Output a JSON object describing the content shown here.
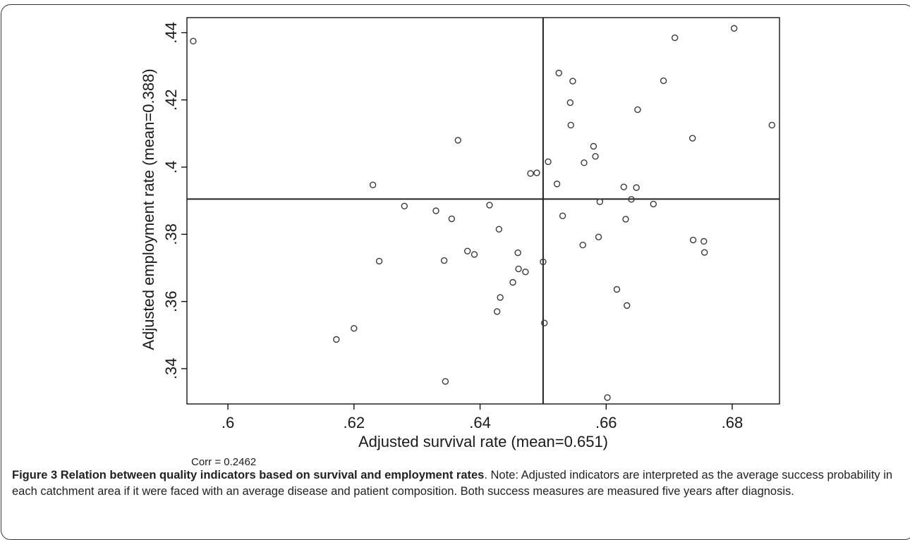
{
  "chart_data": {
    "type": "scatter",
    "xlabel": "Adjusted survival rate (mean=0.651)",
    "ylabel": "Adjusted employment rate (mean=0.388)",
    "xlim": [
      0.5935,
      0.6875
    ],
    "ylim": [
      0.3295,
      0.4445
    ],
    "xticks": [
      0.6,
      0.62,
      0.64,
      0.66,
      0.68
    ],
    "xtick_labels": [
      ".6",
      ".62",
      ".64",
      ".66",
      ".68"
    ],
    "yticks": [
      0.34,
      0.36,
      0.38,
      0.4,
      0.42,
      0.44
    ],
    "ytick_labels": [
      ".34",
      ".36",
      ".38",
      ".4",
      ".42",
      ".44"
    ],
    "reference_lines": {
      "x": 0.65,
      "y": 0.3905
    },
    "grid": false,
    "marker": "hollow-circle",
    "points": [
      [
        0.5945,
        0.4375
      ],
      [
        0.6172,
        0.3487
      ],
      [
        0.62,
        0.352
      ],
      [
        0.623,
        0.3947
      ],
      [
        0.624,
        0.372
      ],
      [
        0.628,
        0.3884
      ],
      [
        0.633,
        0.387
      ],
      [
        0.6343,
        0.3722
      ],
      [
        0.6345,
        0.3362
      ],
      [
        0.6355,
        0.3846
      ],
      [
        0.6365,
        0.408
      ],
      [
        0.638,
        0.375
      ],
      [
        0.6391,
        0.374
      ],
      [
        0.6415,
        0.3887
      ],
      [
        0.6427,
        0.357
      ],
      [
        0.643,
        0.3815
      ],
      [
        0.6432,
        0.3612
      ],
      [
        0.6452,
        0.3657
      ],
      [
        0.646,
        0.3745
      ],
      [
        0.6461,
        0.3697
      ],
      [
        0.6472,
        0.3688
      ],
      [
        0.648,
        0.3981
      ],
      [
        0.649,
        0.3983
      ],
      [
        0.65,
        0.3718
      ],
      [
        0.6502,
        0.3536
      ],
      [
        0.6508,
        0.4016
      ],
      [
        0.6522,
        0.395
      ],
      [
        0.6525,
        0.428
      ],
      [
        0.6531,
        0.3855
      ],
      [
        0.6543,
        0.4192
      ],
      [
        0.6544,
        0.4125
      ],
      [
        0.6547,
        0.4256
      ],
      [
        0.6563,
        0.3768
      ],
      [
        0.6565,
        0.4013
      ],
      [
        0.658,
        0.4062
      ],
      [
        0.6583,
        0.4032
      ],
      [
        0.6588,
        0.3792
      ],
      [
        0.659,
        0.3897
      ],
      [
        0.6602,
        0.3314
      ],
      [
        0.6617,
        0.3636
      ],
      [
        0.6628,
        0.3941
      ],
      [
        0.6631,
        0.3845
      ],
      [
        0.6633,
        0.3588
      ],
      [
        0.664,
        0.3904
      ],
      [
        0.6648,
        0.3939
      ],
      [
        0.665,
        0.4171
      ],
      [
        0.6675,
        0.389
      ],
      [
        0.6691,
        0.4257
      ],
      [
        0.6737,
        0.4086
      ],
      [
        0.6738,
        0.3783
      ],
      [
        0.6709,
        0.4385
      ],
      [
        0.6755,
        0.3779
      ],
      [
        0.6756,
        0.3746
      ],
      [
        0.6803,
        0.4413
      ],
      [
        0.6863,
        0.4125
      ]
    ]
  },
  "corr_label": "Corr =  0.2462",
  "caption": {
    "lead": "Figure 3 Relation between quality indicators based on survival and employment rates",
    "body": ". Note: Adjusted indicators are interpreted as the average success probability in each catchment area if it were faced with an average disease and patient composition. Both success measures are measured five years after diagnosis."
  }
}
